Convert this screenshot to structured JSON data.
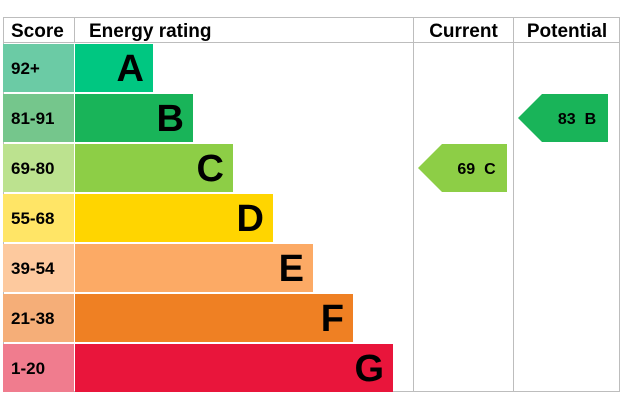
{
  "headers": {
    "score": "Score",
    "energy_rating": "Energy rating",
    "current": "Current",
    "potential": "Potential"
  },
  "chart_data": {
    "type": "bar",
    "bands": [
      {
        "score_range": "92+",
        "letter": "A",
        "bar_color": "#00c781",
        "score_bg": "#6bcba5"
      },
      {
        "score_range": "81-91",
        "letter": "B",
        "bar_color": "#19b459",
        "score_bg": "#75c68c"
      },
      {
        "score_range": "69-80",
        "letter": "C",
        "bar_color": "#8dce46",
        "score_bg": "#bce28f"
      },
      {
        "score_range": "55-68",
        "letter": "D",
        "bar_color": "#ffd500",
        "score_bg": "#ffe566"
      },
      {
        "score_range": "39-54",
        "letter": "E",
        "bar_color": "#fcaa65",
        "score_bg": "#fdc99e"
      },
      {
        "score_range": "21-38",
        "letter": "F",
        "bar_color": "#ef8023",
        "score_bg": "#f5ae78"
      },
      {
        "score_range": "1-20",
        "letter": "G",
        "bar_color": "#e9153b",
        "score_bg": "#f07c8e"
      }
    ],
    "current": {
      "value": 69,
      "letter": "C",
      "label": "69 C",
      "color": "#8dce46"
    },
    "potential": {
      "value": 83,
      "letter": "B",
      "label": "83 B",
      "color": "#19b459"
    }
  }
}
